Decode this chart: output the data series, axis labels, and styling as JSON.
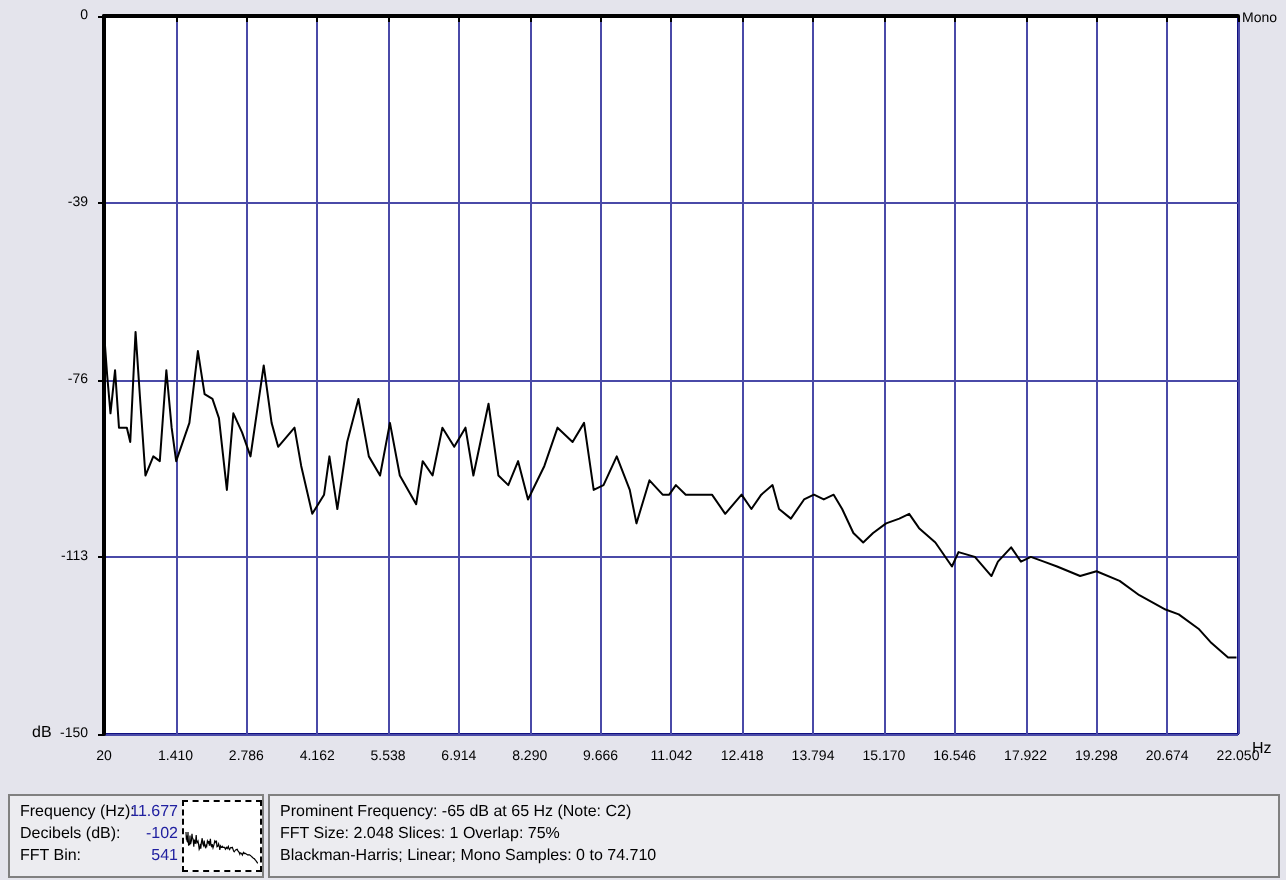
{
  "chart_data": {
    "type": "line",
    "xlabel": "Hz",
    "ylabel": "dB",
    "x": [
      20,
      81,
      146,
      235,
      311,
      464,
      530,
      633,
      721,
      825,
      978,
      1104,
      1231,
      1334,
      1422,
      1679,
      1844,
      1974,
      2127,
      2253,
      2407,
      2533,
      2702,
      2866,
      3123,
      3276,
      3403,
      3721,
      3851,
      4066,
      4295,
      4399,
      4553,
      4744,
      4962,
      5165,
      5383,
      5575,
      5767,
      6084,
      6211,
      6403,
      6594,
      6824,
      7042,
      7196,
      7490,
      7682,
      7874,
      8065,
      8257,
      8575,
      8831,
      9123,
      9346,
      9533,
      9724,
      9981,
      10234,
      10364,
      10617,
      10873,
      11000,
      11130,
      11321,
      11705,
      11831,
      12088,
      12406,
      12597,
      12789,
      13007,
      13134,
      13364,
      13620,
      13812,
      14003,
      14195,
      14360,
      14578,
      14769,
      14961,
      15214,
      15471,
      15662,
      15854,
      16171,
      16493,
      16620,
      16938,
      17260,
      17386,
      17643,
      17834,
      18026,
      18279,
      18535,
      18983,
      19301,
      19750,
      20133,
      20642,
      20899,
      21282,
      21535,
      21857,
      22021
    ],
    "series": [
      {
        "color": "#000000",
        "values": [
          -66,
          -75,
          -83,
          -74,
          -86,
          -86,
          -89,
          -66,
          -80,
          -96,
          -92,
          -93,
          -74,
          -86,
          -93,
          -85,
          -70,
          -79,
          -80,
          -84,
          -99,
          -83,
          -87,
          -92,
          -73,
          -85,
          -90,
          -86,
          -94,
          -104,
          -100,
          -92,
          -103,
          -89,
          -80,
          -92,
          -96,
          -85,
          -96,
          -102,
          -93,
          -96,
          -86,
          -90,
          -86,
          -96,
          -81,
          -96,
          -98,
          -93,
          -101,
          -94,
          -86,
          -89,
          -85,
          -99,
          -98,
          -92,
          -99,
          -106,
          -97,
          -100,
          -100,
          -98,
          -100,
          -100,
          -100,
          -104,
          -100,
          -103,
          -100,
          -98,
          -103,
          -105,
          -101,
          -100,
          -101,
          -100,
          -103,
          -108,
          -110,
          -108,
          -106,
          -105,
          -104,
          -107,
          -110,
          -115,
          -112,
          -113,
          -117,
          -114,
          -111,
          -114,
          -113,
          -114,
          -115,
          -117,
          -116,
          -118,
          -121,
          -124,
          -125,
          -128,
          -131,
          -134,
          -134
        ]
      }
    ],
    "xlim": [
      20,
      22050
    ],
    "xticks": [
      20,
      {
        "value": 1410,
        "label": "1.410"
      },
      {
        "value": 2786,
        "label": "2.786"
      },
      {
        "value": 4162,
        "label": "4.162"
      },
      {
        "value": 5538,
        "label": "5.538"
      },
      {
        "value": 6914,
        "label": "6.914"
      },
      {
        "value": 8290,
        "label": "8.290"
      },
      {
        "value": 9666,
        "label": "9.666"
      },
      {
        "value": 11042,
        "label": "11.042"
      },
      {
        "value": 12418,
        "label": "12.418"
      },
      {
        "value": 13794,
        "label": "13.794"
      },
      {
        "value": 15170,
        "label": "15.170"
      },
      {
        "value": 16546,
        "label": "16.546"
      },
      {
        "value": 17922,
        "label": "17.922"
      },
      {
        "value": 19298,
        "label": "19.298"
      },
      {
        "value": 20674,
        "label": "20.674"
      },
      {
        "value": 22050,
        "label": "22.050"
      }
    ],
    "ylim": [
      -150,
      0
    ],
    "yticks": [
      0,
      -39,
      -76,
      -113,
      -150
    ],
    "grid": true,
    "marker": "none",
    "line_style": "solid",
    "annotations": [
      "Mono",
      "Frequency (Hz):",
      "Decibels (dB):",
      "FFT Bin:",
      "11.677",
      "-102",
      "541",
      "Prominent Frequency: -65 dB at 65 Hz (Note: C2)",
      "FFT Size: 2.048  Slices: 1  Overlap: 75%",
      "Blackman-Harris; Linear; Mono  Samples: 0 to 74.710"
    ]
  }
}
